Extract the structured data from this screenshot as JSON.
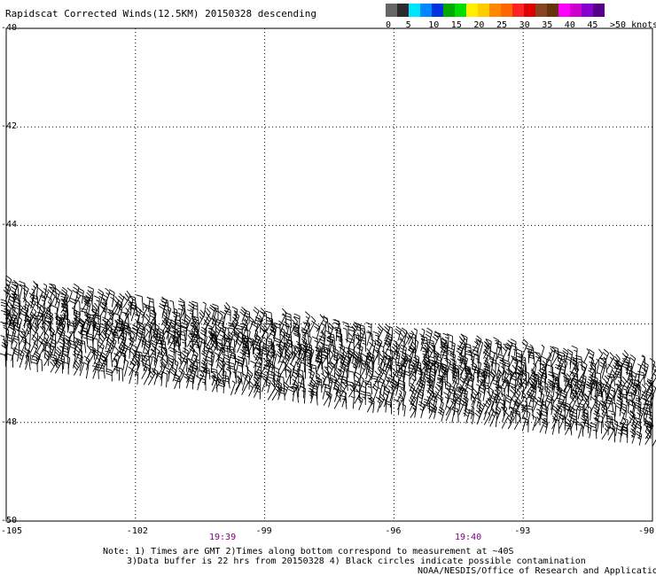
{
  "title": "Rapidscat Corrected Winds(12.5KM) 20150328 descending",
  "legend": {
    "colors": [
      "#666666",
      "#2b2b2b",
      "#00e5ff",
      "#0088ff",
      "#0033dd",
      "#00aa00",
      "#00dd00",
      "#ffee00",
      "#ffcc00",
      "#ff8800",
      "#ff6600",
      "#ff2222",
      "#dd0000",
      "#884422",
      "#663311",
      "#ff00ff",
      "#cc00cc",
      "#8800cc",
      "#550088"
    ],
    "labels": [
      "0",
      "5",
      "10",
      "15",
      "20",
      "25",
      "30",
      "35",
      "40",
      "45",
      ">50 knots"
    ]
  },
  "map": {
    "lon_range": [
      -105,
      -90
    ],
    "lat_range": [
      -50,
      -40
    ],
    "lon_ticks": [
      "-105",
      "-102",
      "-99",
      "-96",
      "-93",
      "-90"
    ],
    "lat_ticks": [
      "-40",
      "-42",
      "-44",
      "-46",
      "-48",
      "-50"
    ],
    "swaths": [
      {
        "lon_start": -105,
        "lon_end": -90,
        "lat_top_start": -45.4,
        "lat_top_end": -47.0,
        "lat_bot_start": -46.1,
        "lat_bot_end": -47.7,
        "wind_color": "#000000"
      },
      {
        "lon_start": -105,
        "lon_end": -90,
        "lat_top_start": -46.0,
        "lat_top_end": -47.6,
        "lat_bot_start": -47.0,
        "lat_bot_end": -48.5,
        "wind_color": "#000000"
      }
    ]
  },
  "times": [
    {
      "label": "19:39",
      "lon": -100
    },
    {
      "label": "19:40",
      "lon": -94.3
    }
  ],
  "notes": [
    "Note: 1) Times are GMT 2)Times along bottom correspond to measurement at ~40S",
    "3)Data buffer is 22 hrs from 20150328 4) Black circles indicate possible contamination",
    "NOAA/NESDIS/Office of Research and Applications"
  ]
}
